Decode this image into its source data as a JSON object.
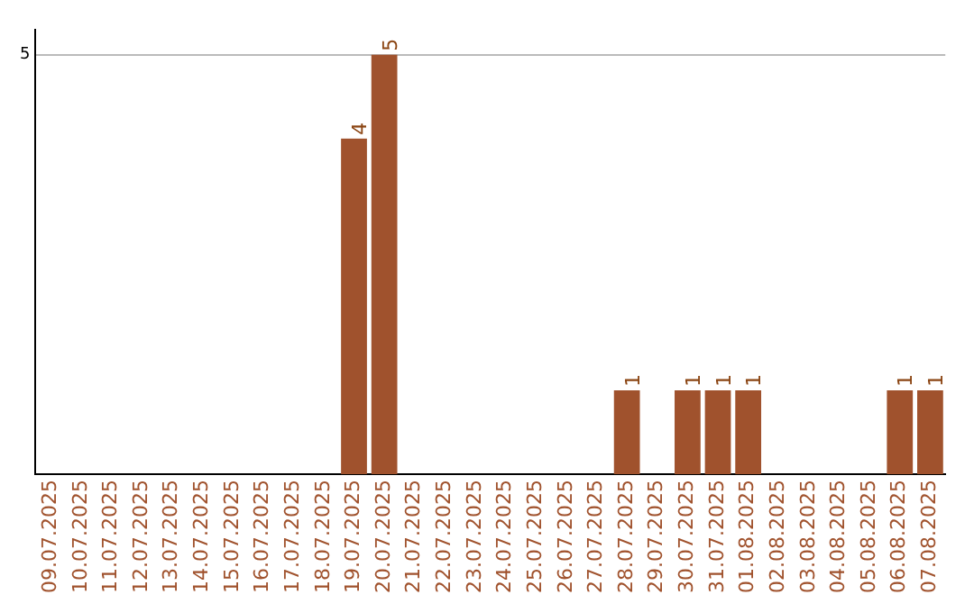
{
  "chart_data": {
    "type": "bar",
    "categories": [
      "09.07.2025",
      "10.07.2025",
      "11.07.2025",
      "12.07.2025",
      "13.07.2025",
      "14.07.2025",
      "15.07.2025",
      "16.07.2025",
      "17.07.2025",
      "18.07.2025",
      "19.07.2025",
      "20.07.2025",
      "21.07.2025",
      "22.07.2025",
      "23.07.2025",
      "24.07.2025",
      "25.07.2025",
      "26.07.2025",
      "27.07.2025",
      "28.07.2025",
      "29.07.2025",
      "30.07.2025",
      "31.07.2025",
      "01.08.2025",
      "02.08.2025",
      "03.08.2025",
      "04.08.2025",
      "05.08.2025",
      "06.08.2025",
      "07.08.2025"
    ],
    "values": [
      0,
      0,
      0,
      0,
      0,
      0,
      0,
      0,
      0,
      0,
      4,
      5,
      0,
      0,
      0,
      0,
      0,
      0,
      0,
      1,
      0,
      1,
      1,
      1,
      0,
      0,
      0,
      0,
      1,
      1
    ],
    "value_labels": [
      null,
      null,
      null,
      null,
      null,
      null,
      null,
      null,
      null,
      null,
      "4",
      "5",
      null,
      null,
      null,
      null,
      null,
      null,
      null,
      "1",
      null,
      "1",
      "1",
      "1",
      null,
      null,
      null,
      null,
      "1",
      "1"
    ],
    "color": "#a0522d",
    "ylim": [
      0,
      5.3
    ],
    "yticks": [
      5
    ],
    "grid": "y",
    "legend": false
  }
}
